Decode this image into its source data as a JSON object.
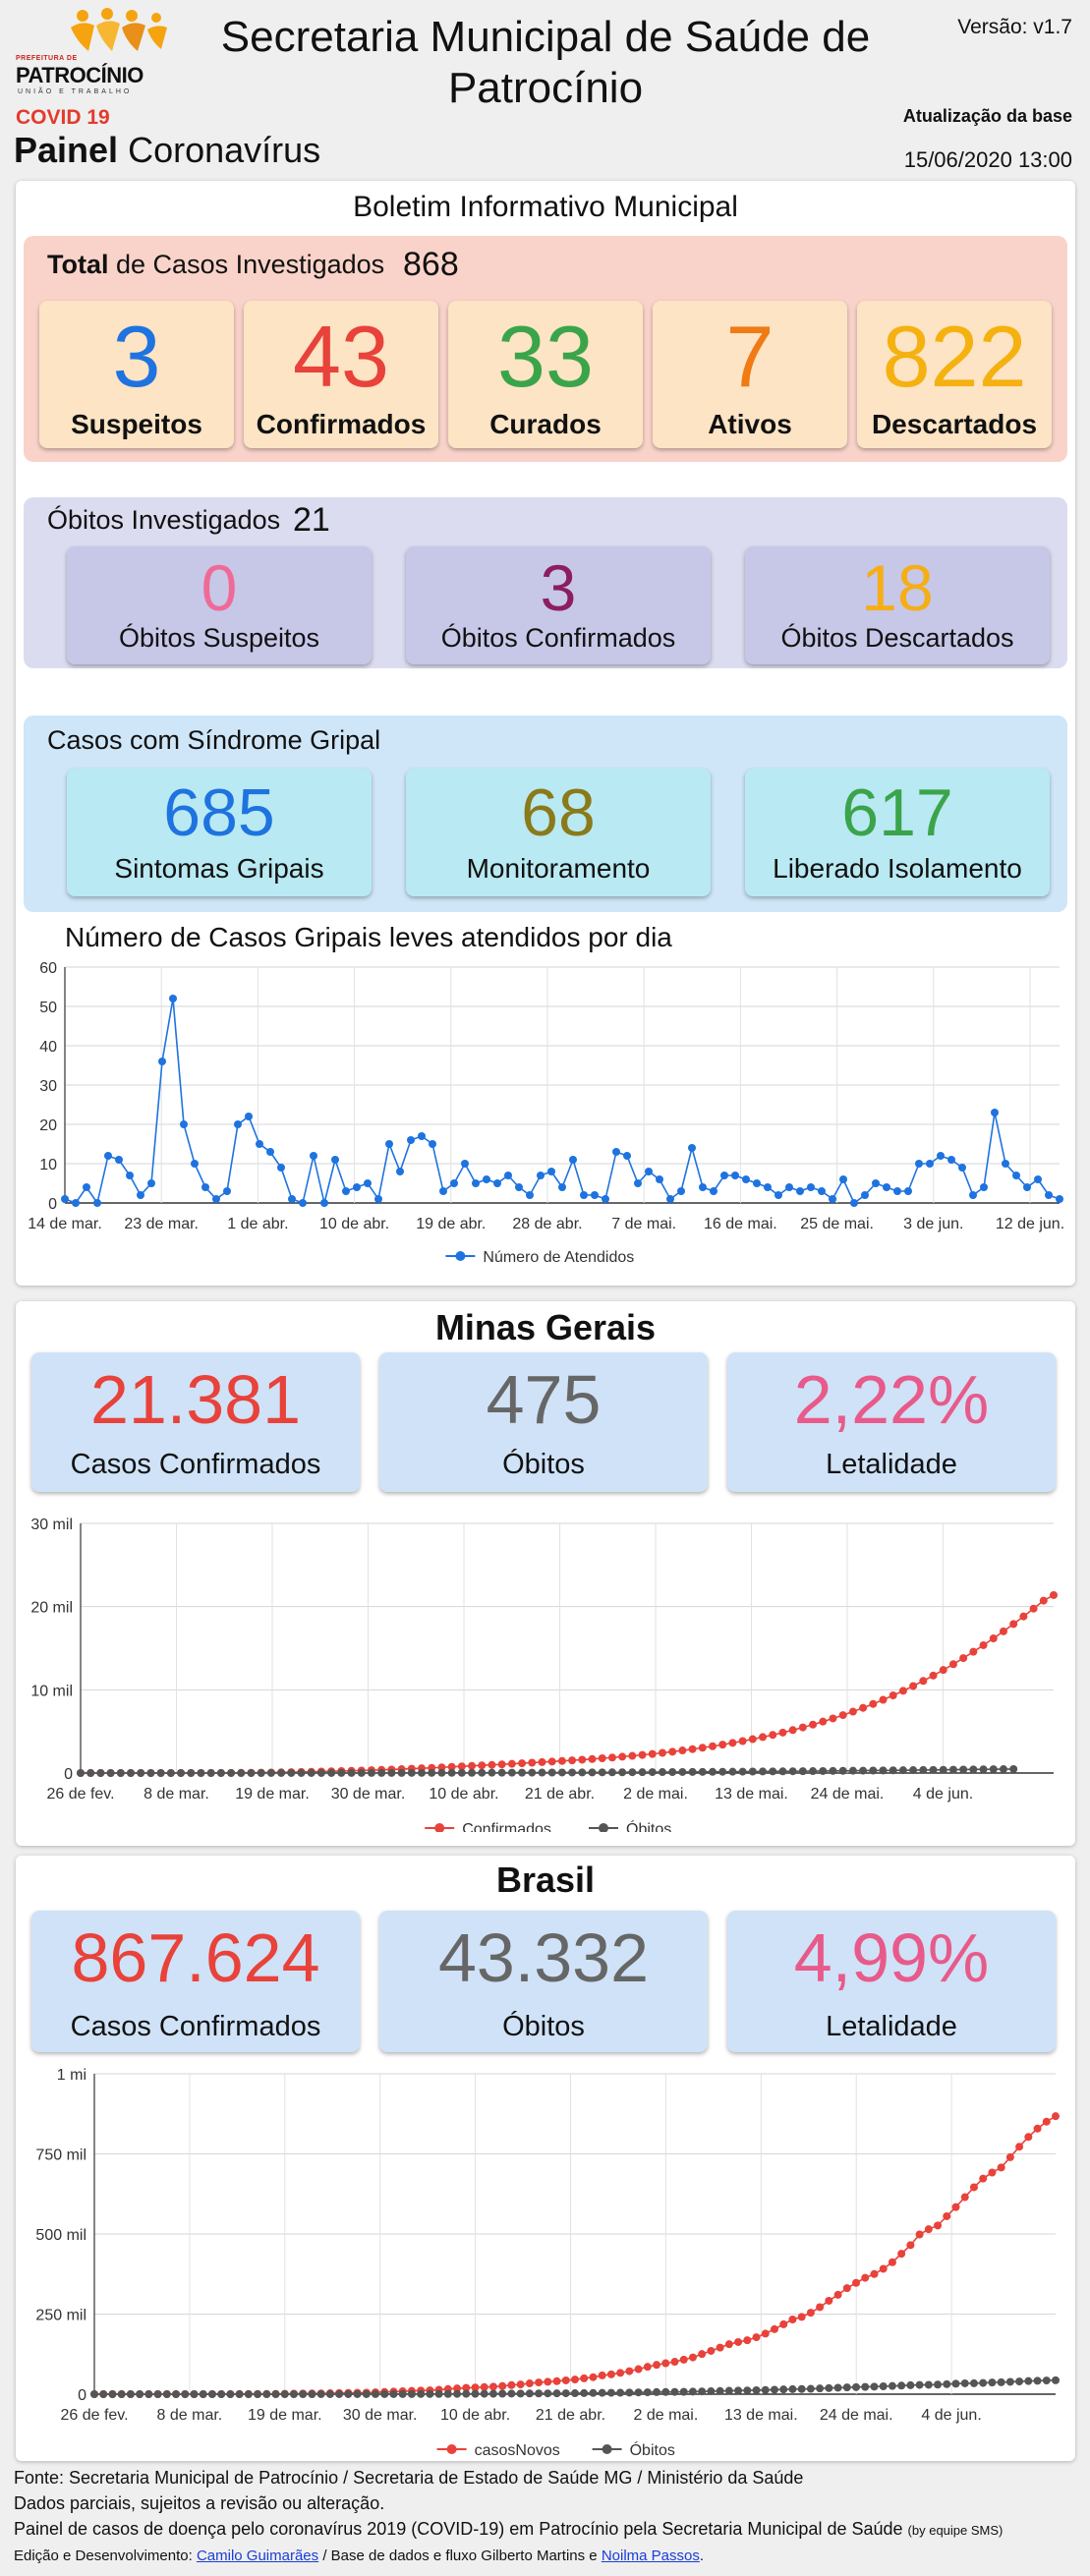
{
  "header": {
    "brand_top": "PREFEITURA DE",
    "brand": "PATROCÍNIO",
    "brand_sub": "UNIÃO E TRABALHO",
    "covid_label": "COVID 19",
    "painel_bold": "Painel",
    "painel_rest": "Coronavírus",
    "title": "Secretaria Municipal de Saúde de Patrocínio",
    "version": "Versão: v1.7",
    "update_label": "Atualização da base",
    "update_date": "15/06/2020 13:00",
    "colors": {
      "covid": "#e23b2c"
    }
  },
  "boletim": {
    "title": "Boletim Informativo Municipal",
    "total": {
      "label_bold": "Total",
      "label_rest": "de Casos Investigados",
      "count": "868",
      "cards": [
        {
          "value": "3",
          "label": "Suspeitos",
          "color": "#1e73e0"
        },
        {
          "value": "43",
          "label": "Confirmados",
          "color": "#e8423a"
        },
        {
          "value": "33",
          "label": "Curados",
          "color": "#3aa44a"
        },
        {
          "value": "7",
          "label": "Ativos",
          "color": "#f07a14"
        },
        {
          "value": "822",
          "label": "Descartados",
          "color": "#f5b10f"
        }
      ]
    },
    "obitos": {
      "label": "Óbitos Investigados",
      "count": "21",
      "cards": [
        {
          "value": "0",
          "label": "Óbitos Suspeitos",
          "color": "#ef6a96"
        },
        {
          "value": "3",
          "label": "Óbitos Confirmados",
          "color": "#8c1d5e"
        },
        {
          "value": "18",
          "label": "Óbitos Descartados",
          "color": "#f5ae14"
        }
      ]
    },
    "gripal": {
      "label": "Casos com Síndrome Gripal",
      "cards": [
        {
          "value": "685",
          "label": "Sintomas Gripais",
          "color": "#1e73e0"
        },
        {
          "value": "68",
          "label": "Monitoramento",
          "color": "#8a7a1a"
        },
        {
          "value": "617",
          "label": "Liberado Isolamento",
          "color": "#3aa44a"
        }
      ]
    },
    "daily_chart_title": "Número de Casos Gripais leves atendidos por dia"
  },
  "minas": {
    "title": "Minas Gerais",
    "cards": [
      {
        "value": "21.381",
        "label": "Casos Confirmados",
        "color": "#e8423a"
      },
      {
        "value": "475",
        "label": "Óbitos",
        "color": "#666666"
      },
      {
        "value": "2,22%",
        "label": "Letalidade",
        "color": "#e85a8a"
      }
    ]
  },
  "brasil": {
    "title": "Brasil",
    "cards": [
      {
        "value": "867.624",
        "label": "Casos Confirmados",
        "color": "#e8423a"
      },
      {
        "value": "43.332",
        "label": "Óbitos",
        "color": "#666666"
      },
      {
        "value": "4,99%",
        "label": "Letalidade",
        "color": "#e85a8a"
      }
    ]
  },
  "footer": {
    "line1": "Fonte: Secretaria Municipal de Patrocínio / Secretaria de Estado de Saúde MG / Ministério da Saúde",
    "line2": "Dados parciais, sujeitos a revisão ou alteração.",
    "line3": "Painel de casos de doença pelo coronavírus 2019 (COVID-19) em Patrocínio pela Secretaria Municipal de Saúde",
    "line3_small": "(by equipe SMS)",
    "line4_prefix": "Edição e Desenvolvimento:",
    "dev_link": "Camilo Guimarães",
    "line4_mid": "/ Base de dados e fluxo Gilberto Martins e",
    "db_link": "Noilma Passos",
    "line4_end": "."
  },
  "chart_data": [
    {
      "type": "line",
      "title": "Número de Casos Gripais leves atendidos por dia",
      "x_tick_labels": [
        "14 de mar.",
        "23 de mar.",
        "1 de abr.",
        "10 de abr.",
        "19 de abr.",
        "28 de abr.",
        "7 de mai.",
        "16 de mai.",
        "25 de mai.",
        "3 de jun.",
        "12 de jun."
      ],
      "x_start": "14 de mar.",
      "x_end": "14 de jun.",
      "ylim": [
        0,
        60
      ],
      "y_ticks": [
        0,
        10,
        20,
        30,
        40,
        50,
        60
      ],
      "legend": "bottom",
      "series": [
        {
          "name": "Número de Atendidos",
          "color": "#1e73e0",
          "values": [
            1,
            0,
            4,
            0,
            12,
            11,
            7,
            2,
            5,
            36,
            52,
            20,
            10,
            4,
            1,
            3,
            20,
            22,
            15,
            13,
            9,
            1,
            0,
            12,
            0,
            11,
            3,
            4,
            5,
            1,
            15,
            8,
            16,
            17,
            15,
            3,
            5,
            10,
            5,
            6,
            5,
            7,
            4,
            2,
            7,
            8,
            4,
            11,
            2,
            2,
            1,
            13,
            12,
            5,
            8,
            6,
            1,
            3,
            14,
            4,
            3,
            7,
            7,
            6,
            5,
            4,
            2,
            4,
            3,
            4,
            3,
            1,
            6,
            0,
            2,
            5,
            4,
            3,
            3,
            10,
            10,
            12,
            11,
            9,
            2,
            4,
            23,
            10,
            7,
            4,
            6,
            2,
            1
          ]
        }
      ],
      "grid": true
    },
    {
      "type": "line",
      "x_tick_labels": [
        "26 de fev.",
        "8 de mar.",
        "19 de mar.",
        "30 de mar.",
        "10 de abr.",
        "21 de abr.",
        "2 de mai.",
        "13 de mai.",
        "24 de mai.",
        "4 de jun."
      ],
      "x_start": "26 de fev.",
      "x_end": "14 de jun.",
      "ylim": [
        0,
        30000
      ],
      "y_tick_labels": [
        "0",
        "10 mil",
        "20 mil",
        "30 mil"
      ],
      "legend": "bottom",
      "series": [
        {
          "name": "Confirmados",
          "color": "#e8423a",
          "values": [
            0,
            0,
            0,
            0,
            0,
            0,
            0,
            0,
            1,
            1,
            2,
            3,
            5,
            8,
            12,
            17,
            24,
            34,
            46,
            61,
            82,
            105,
            130,
            153,
            180,
            210,
            240,
            270,
            300,
            340,
            380,
            420,
            470,
            520,
            570,
            620,
            680,
            740,
            800,
            860,
            920,
            980,
            1040,
            1100,
            1170,
            1240,
            1310,
            1380,
            1450,
            1520,
            1600,
            1680,
            1770,
            1860,
            1960,
            2060,
            2170,
            2290,
            2420,
            2560,
            2710,
            2870,
            3040,
            3220,
            3410,
            3620,
            3840,
            4070,
            4320,
            4580,
            4860,
            5160,
            5480,
            5820,
            6180,
            6560,
            6960,
            7380,
            7830,
            8300,
            8800,
            9330,
            9880,
            10460,
            11070,
            11710,
            12380,
            13080,
            13810,
            14570,
            15360,
            16180,
            17030,
            17910,
            18820,
            19760,
            20720,
            21381
          ]
        },
        {
          "name": "Óbitos",
          "color": "#555555",
          "values": [
            0,
            0,
            0,
            0,
            0,
            0,
            0,
            0,
            0,
            0,
            0,
            0,
            0,
            0,
            0,
            0,
            1,
            1,
            1,
            2,
            2,
            3,
            4,
            5,
            6,
            7,
            8,
            9,
            10,
            11,
            12,
            14,
            16,
            18,
            20,
            22,
            24,
            26,
            28,
            31,
            34,
            37,
            40,
            43,
            46,
            50,
            54,
            58,
            62,
            66,
            70,
            75,
            80,
            85,
            90,
            95,
            100,
            106,
            112,
            118,
            124,
            131,
            138,
            145,
            152,
            160,
            168,
            176,
            185,
            194,
            203,
            212,
            222,
            232,
            242,
            253,
            264,
            275,
            287,
            299,
            311,
            323,
            336,
            349,
            362,
            375,
            389,
            403,
            417,
            431,
            445,
            459,
            467,
            475
          ]
        }
      ],
      "grid": true
    },
    {
      "type": "line",
      "x_tick_labels": [
        "26 de fev.",
        "8 de mar.",
        "19 de mar.",
        "30 de mar.",
        "10 de abr.",
        "21 de abr.",
        "2 de mai.",
        "13 de mai.",
        "24 de mai.",
        "4 de jun."
      ],
      "x_start": "26 de fev.",
      "x_end": "14 de jun.",
      "ylim": [
        0,
        1000000
      ],
      "y_tick_labels": [
        "0",
        "250 mil",
        "500 mil",
        "750 mil",
        "1 mi"
      ],
      "legend": "bottom",
      "series": [
        {
          "name": "casosNovos",
          "color": "#e8423a",
          "values": [
            1,
            1,
            1,
            2,
            2,
            2,
            3,
            3,
            4,
            7,
            13,
            25,
            34,
            52,
            77,
            121,
            200,
            291,
            428,
            621,
            904,
            1128,
            1546,
            1891,
            2201,
            2433,
            2915,
            3417,
            3904,
            4256,
            4579,
            5717,
            6836,
            7910,
            9056,
            10278,
            11130,
            12056,
            13717,
            15927,
            17857,
            19638,
            20727,
            22169,
            23430,
            25262,
            28320,
            30425,
            33682,
            36599,
            38654,
            40581,
            43079,
            45757,
            49492,
            52995,
            58509,
            61888,
            66501,
            71886,
            78162,
            85380,
            91589,
            96559,
            101147,
            107780,
            114715,
            125218,
            135106,
            145328,
            155939,
            162699,
            168331,
            177589,
            188974,
            202918,
            218223,
            233142,
            241080,
            254220,
            271628,
            291579,
            310087,
            330890,
            347398,
            363211,
            374898,
            391222,
            411821,
            438238,
            465166,
            498440,
            514849,
            526447,
            555383,
            584016,
            614941,
            645771,
            672846,
            691758,
            707412,
            739503,
            772416,
            802828,
            828810,
            850514,
            867624
          ]
        },
        {
          "name": "Óbitos",
          "color": "#555555",
          "values": [
            0,
            0,
            0,
            0,
            0,
            0,
            0,
            0,
            0,
            0,
            0,
            0,
            0,
            0,
            0,
            0,
            0,
            1,
            4,
            7,
            11,
            18,
            25,
            34,
            46,
            57,
            77,
            92,
            114,
            136,
            159,
            201,
            240,
            299,
            359,
            432,
            486,
            553,
            667,
            800,
            941,
            1056,
            1124,
            1223,
            1328,
            1532,
            1736,
            1924,
            2141,
            2347,
            2462,
            2575,
            2741,
            2906,
            3313,
            3704,
            4045,
            4271,
            4543,
            5017,
            5466,
            5901,
            6329,
            6750,
            7025,
            7321,
            7921,
            8536,
            9146,
            9897,
            10627,
            11123,
            11653,
            12461,
            13149,
            13993,
            14817,
            15633,
            16118,
            16792,
            17971,
            18859,
            20047,
            21048,
            22013,
            22666,
            23473,
            24512,
            25598,
            26754,
            27878,
            28834,
            29314,
            29937,
            31199,
            32548,
            33846,
            34021,
            35026,
            36455,
            37134,
            38406,
            39680,
            40919,
            41828,
            42720,
            43332
          ]
        }
      ],
      "grid": true
    }
  ]
}
